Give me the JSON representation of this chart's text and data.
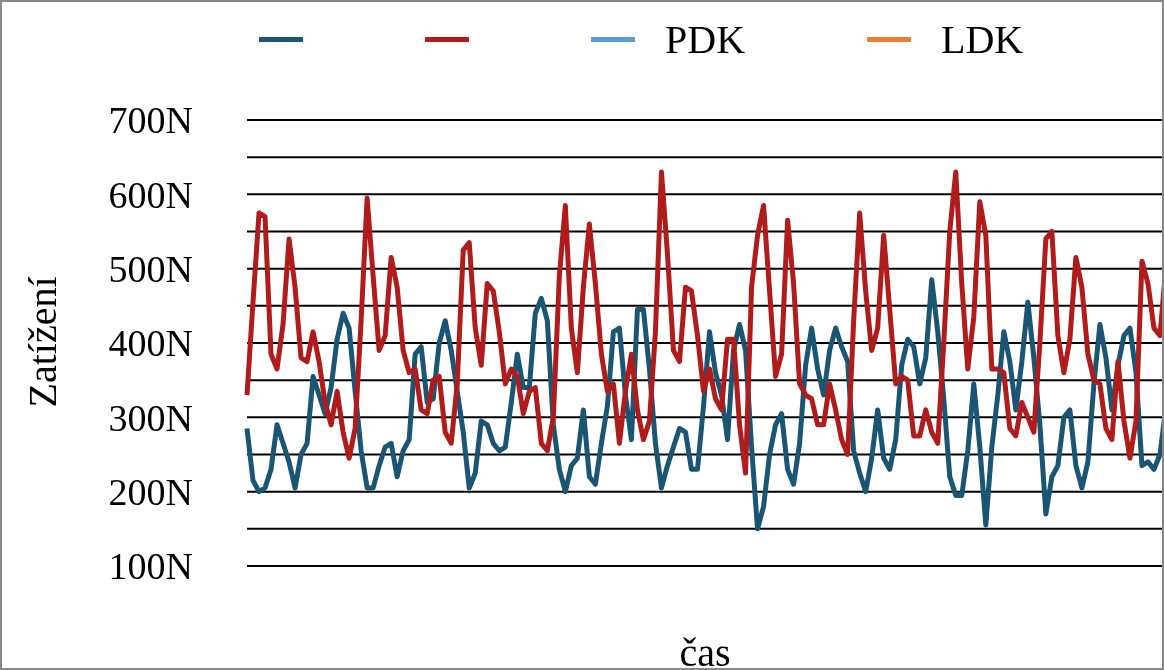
{
  "chart_data": {
    "type": "line",
    "xlabel": "čas",
    "ylabel": "Zatížení",
    "legend": "top",
    "grid": "y",
    "marker": "none",
    "line_style": "solid",
    "tick_labels": "y",
    "categories": [
      null,
      null,
      null,
      null,
      null,
      null,
      null,
      null,
      null,
      null,
      null,
      null,
      null,
      null,
      null,
      null,
      null,
      null,
      null,
      null,
      null,
      null,
      null,
      null,
      null,
      null,
      null,
      null,
      null,
      null,
      null,
      null,
      null,
      null,
      null,
      null,
      null,
      null,
      null,
      null,
      null,
      null,
      null,
      null,
      null,
      null,
      null,
      null,
      null,
      null,
      null,
      null,
      null,
      null,
      null,
      null,
      null,
      null,
      null,
      null,
      null,
      null,
      null,
      null,
      null,
      null,
      null,
      null,
      null,
      null,
      null,
      null,
      null,
      null,
      null,
      null,
      null,
      null,
      null,
      null,
      null,
      null,
      null,
      null,
      null,
      null,
      null,
      null,
      null,
      null,
      null,
      null,
      null,
      null,
      null,
      null,
      null,
      null,
      null,
      null,
      null,
      null,
      null,
      null,
      null,
      null,
      null,
      null,
      null,
      null,
      null,
      null,
      null,
      null,
      null,
      null,
      null,
      null,
      null,
      null,
      null,
      null,
      null,
      null,
      null,
      null,
      null,
      null,
      null,
      null,
      null,
      null,
      null,
      null,
      null,
      null,
      null,
      null,
      null,
      null,
      null,
      null,
      null,
      null,
      null,
      null,
      null,
      null,
      null,
      null,
      null,
      null,
      null,
      null
    ],
    "ylim": [
      100,
      700
    ],
    "yticks": [
      {
        "value": 100,
        "label": "100N"
      },
      {
        "value": 150,
        "label": null
      },
      {
        "value": 200,
        "label": "200N"
      },
      {
        "value": 250,
        "label": null
      },
      {
        "value": 300,
        "label": "300N"
      },
      {
        "value": 350,
        "label": null
      },
      {
        "value": 400,
        "label": "400N"
      },
      {
        "value": 450,
        "label": null
      },
      {
        "value": 500,
        "label": "500N"
      },
      {
        "value": 550,
        "label": null
      },
      {
        "value": 600,
        "label": "600N"
      },
      {
        "value": 650,
        "label": null
      },
      {
        "value": 700,
        "label": "700N"
      }
    ],
    "series": [
      {
        "color": "#1a5574",
        "values": [
          285,
          215,
          200,
          205,
          230,
          290,
          265,
          240,
          205,
          250,
          265,
          355,
          330,
          305,
          340,
          405,
          440,
          420,
          335,
          255,
          205,
          205,
          235,
          260,
          265,
          220,
          255,
          270,
          385,
          395,
          320,
          325,
          400,
          430,
          390,
          335,
          280,
          205,
          225,
          295,
          290,
          265,
          255,
          260,
          320,
          385,
          340,
          340,
          440,
          460,
          430,
          290,
          230,
          200,
          235,
          245,
          310,
          220,
          210,
          265,
          315,
          415,
          420,
          330,
          270,
          445,
          445,
          365,
          265,
          205,
          235,
          260,
          285,
          280,
          230,
          230,
          315,
          415,
          360,
          330,
          270,
          390,
          425,
          390,
          260,
          150,
          180,
          250,
          290,
          305,
          230,
          210,
          265,
          370,
          420,
          365,
          330,
          390,
          420,
          395,
          375,
          255,
          225,
          200,
          245,
          310,
          245,
          230,
          270,
          370,
          405,
          395,
          345,
          380,
          485,
          415,
          325,
          220,
          195,
          195,
          255,
          345,
          260,
          155,
          260,
          330,
          415,
          375,
          310,
          375,
          455,
          380,
          290,
          170,
          220,
          235,
          300,
          310,
          235,
          205,
          240,
          345,
          425,
          380,
          310,
          370,
          410,
          420,
          360,
          235,
          240,
          230,
          250,
          315
        ]
      },
      {
        "color": "#b01c1c",
        "values": [
          330,
          455,
          575,
          570,
          385,
          365,
          425,
          540,
          475,
          380,
          375,
          415,
          375,
          320,
          290,
          335,
          280,
          245,
          285,
          430,
          595,
          490,
          390,
          410,
          515,
          475,
          390,
          360,
          365,
          310,
          305,
          350,
          355,
          280,
          265,
          345,
          525,
          535,
          420,
          370,
          480,
          470,
          415,
          345,
          365,
          355,
          305,
          335,
          340,
          265,
          255,
          300,
          490,
          585,
          420,
          360,
          475,
          560,
          480,
          385,
          335,
          345,
          265,
          335,
          385,
          310,
          270,
          295,
          415,
          630,
          520,
          390,
          375,
          475,
          470,
          410,
          335,
          365,
          325,
          310,
          405,
          405,
          290,
          225,
          475,
          545,
          585,
          470,
          355,
          385,
          565,
          480,
          345,
          330,
          325,
          290,
          290,
          345,
          310,
          270,
          250,
          430,
          575,
          470,
          390,
          420,
          545,
          445,
          345,
          355,
          350,
          275,
          275,
          310,
          280,
          265,
          400,
          550,
          630,
          480,
          365,
          435,
          590,
          545,
          365,
          365,
          360,
          285,
          275,
          320,
          300,
          280,
          400,
          540,
          550,
          410,
          360,
          405,
          515,
          475,
          385,
          350,
          345,
          285,
          270,
          375,
          295,
          245,
          295,
          510,
          480,
          420,
          410,
          505
        ]
      },
      {
        "name": "PDK",
        "color": "#5b9bd5",
        "values": [
          null,
          null,
          null,
          null,
          null,
          null,
          null,
          null,
          null,
          null,
          null,
          null,
          null,
          null,
          null,
          null,
          null,
          null,
          null,
          null,
          null,
          null,
          null,
          null,
          null,
          null,
          null,
          null,
          null,
          null,
          null,
          null,
          null,
          null,
          null,
          null,
          null,
          null,
          null,
          null,
          null,
          null,
          null,
          null,
          null,
          null,
          null,
          null,
          null,
          null,
          null,
          null,
          null,
          null,
          null,
          null,
          null,
          null,
          null,
          null,
          null,
          null,
          null,
          null,
          null,
          null,
          null,
          null,
          null,
          null,
          null,
          null,
          null,
          null,
          null,
          null,
          null,
          null,
          null,
          null,
          null,
          null,
          null,
          null,
          null,
          null,
          null,
          null,
          null,
          null,
          null,
          null,
          null,
          null,
          null,
          null,
          null,
          null,
          null,
          null,
          null,
          null,
          null,
          null,
          null,
          null,
          null,
          null,
          null,
          null,
          null,
          null,
          null,
          null,
          null,
          null,
          null,
          null,
          null,
          null,
          null,
          null,
          null,
          null,
          null,
          null,
          null,
          null,
          null,
          null,
          null,
          null,
          null,
          null,
          null,
          null,
          null,
          null,
          null,
          null,
          null,
          null,
          null,
          null,
          null,
          null,
          null,
          null,
          null,
          null,
          null,
          null,
          null,
          null
        ]
      },
      {
        "name": "LDK",
        "color": "#ed7d31",
        "values": [
          null,
          null,
          null,
          null,
          null,
          null,
          null,
          null,
          null,
          null,
          null,
          null,
          null,
          null,
          null,
          null,
          null,
          null,
          null,
          null,
          null,
          null,
          null,
          null,
          null,
          null,
          null,
          null,
          null,
          null,
          null,
          null,
          null,
          null,
          null,
          null,
          null,
          null,
          null,
          null,
          null,
          null,
          null,
          null,
          null,
          null,
          null,
          null,
          null,
          null,
          null,
          null,
          null,
          null,
          null,
          null,
          null,
          null,
          null,
          null,
          null,
          null,
          null,
          null,
          null,
          null,
          null,
          null,
          null,
          null,
          null,
          null,
          null,
          null,
          null,
          null,
          null,
          null,
          null,
          null,
          null,
          null,
          null,
          null,
          null,
          null,
          null,
          null,
          null,
          null,
          null,
          null,
          null,
          null,
          null,
          null,
          null,
          null,
          null,
          null,
          null,
          null,
          null,
          null,
          null,
          null,
          null,
          null,
          null,
          null,
          null,
          null,
          null,
          null,
          null,
          null,
          null,
          null,
          null,
          null,
          null,
          null,
          null,
          null,
          null,
          null,
          null,
          null,
          null,
          null,
          null,
          null,
          null,
          null,
          null,
          null,
          null,
          null,
          null,
          null,
          null,
          null,
          null,
          null,
          null,
          null,
          null,
          null,
          null,
          null,
          null,
          null,
          null,
          null
        ]
      }
    ]
  }
}
